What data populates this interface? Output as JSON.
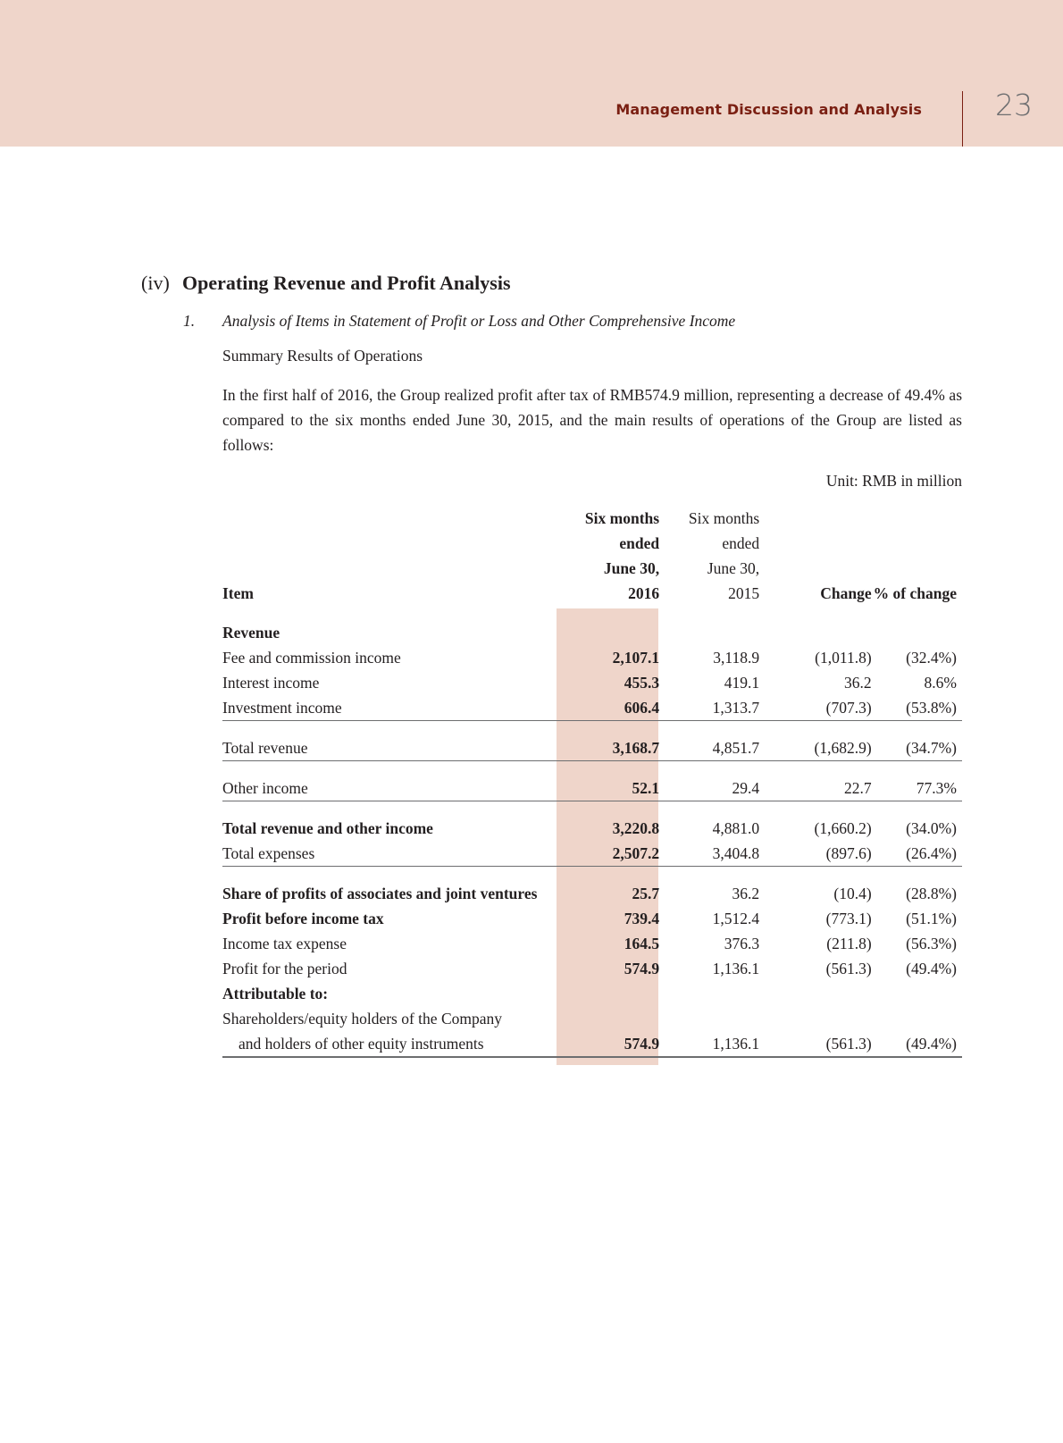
{
  "header": {
    "section": "Management Discussion and Analysis",
    "page_number": "23"
  },
  "section": {
    "number": "(iv)",
    "title": "Operating Revenue and Profit Analysis"
  },
  "subsection": {
    "number": "1.",
    "title": "Analysis of Items in Statement of Profit or Loss and Other Comprehensive Income"
  },
  "summary_heading": "Summary Results of Operations",
  "paragraph": "In the first half of 2016, the Group realized profit after tax of RMB574.9 million, representing a decrease of 49.4% as compared to the six months ended June 30, 2015, and the main results of operations of the Group are listed as follows:",
  "unit": "Unit: RMB in million",
  "table": {
    "headers": {
      "item": "Item",
      "col2016": [
        "Six months",
        "ended",
        "June 30,",
        "2016"
      ],
      "col2015": [
        "Six months",
        "ended",
        "June 30,",
        "2015"
      ],
      "change": "Change",
      "pct": "% of change"
    },
    "rows": [
      {
        "item": "Revenue",
        "bold": true,
        "v2016": "",
        "v2015": "",
        "change": "",
        "pct": ""
      },
      {
        "item": "Fee and commission income",
        "v2016": "2,107.1",
        "v2015": "3,118.9",
        "change": "(1,011.8)",
        "pct": "(32.4%)"
      },
      {
        "item": "Interest income",
        "v2016": "455.3",
        "v2015": "419.1",
        "change": "36.2",
        "pct": "8.6%"
      },
      {
        "item": "Investment income",
        "v2016": "606.4",
        "v2015": "1,313.7",
        "change": "(707.3)",
        "pct": "(53.8%)",
        "rule": true
      },
      {
        "item": "Total revenue",
        "v2016": "3,168.7",
        "v2015": "4,851.7",
        "change": "(1,682.9)",
        "pct": "(34.7%)",
        "rule": true
      },
      {
        "item": "Other income",
        "v2016": "52.1",
        "v2015": "29.4",
        "change": "22.7",
        "pct": "77.3%",
        "rule": true
      },
      {
        "item": "Total revenue and other income",
        "bold": true,
        "v2016": "3,220.8",
        "v2015": "4,881.0",
        "change": "(1,660.2)",
        "pct": "(34.0%)"
      },
      {
        "item": "Total expenses",
        "v2016": "2,507.2",
        "v2015": "3,404.8",
        "change": "(897.6)",
        "pct": "(26.4%)",
        "rule": true
      },
      {
        "item": "Share of profits of associates and joint ventures",
        "bold": true,
        "v2016": "25.7",
        "v2015": "36.2",
        "change": "(10.4)",
        "pct": "(28.8%)"
      },
      {
        "item": "Profit before income tax",
        "bold": true,
        "v2016": "739.4",
        "v2015": "1,512.4",
        "change": "(773.1)",
        "pct": "(51.1%)"
      },
      {
        "item": "Income tax expense",
        "v2016": "164.5",
        "v2015": "376.3",
        "change": "(211.8)",
        "pct": "(56.3%)"
      },
      {
        "item": "Profit for the period",
        "v2016": "574.9",
        "v2015": "1,136.1",
        "change": "(561.3)",
        "pct": "(49.4%)"
      },
      {
        "item": "Attributable to:",
        "bold": true,
        "v2016": "",
        "v2015": "",
        "change": "",
        "pct": ""
      },
      {
        "item": "Shareholders/equity holders of the Company",
        "v2016": "",
        "v2015": "",
        "change": "",
        "pct": ""
      },
      {
        "item": "and holders of other equity instruments",
        "indent": true,
        "v2016": "574.9",
        "v2015": "1,136.1",
        "change": "(561.3)",
        "pct": "(49.4%)",
        "rule": true
      }
    ]
  },
  "colors": {
    "band": "#efd5ca",
    "header_text": "#7a1f12",
    "page_number": "#6d6e70",
    "highlight_column": "#efd5ca"
  }
}
